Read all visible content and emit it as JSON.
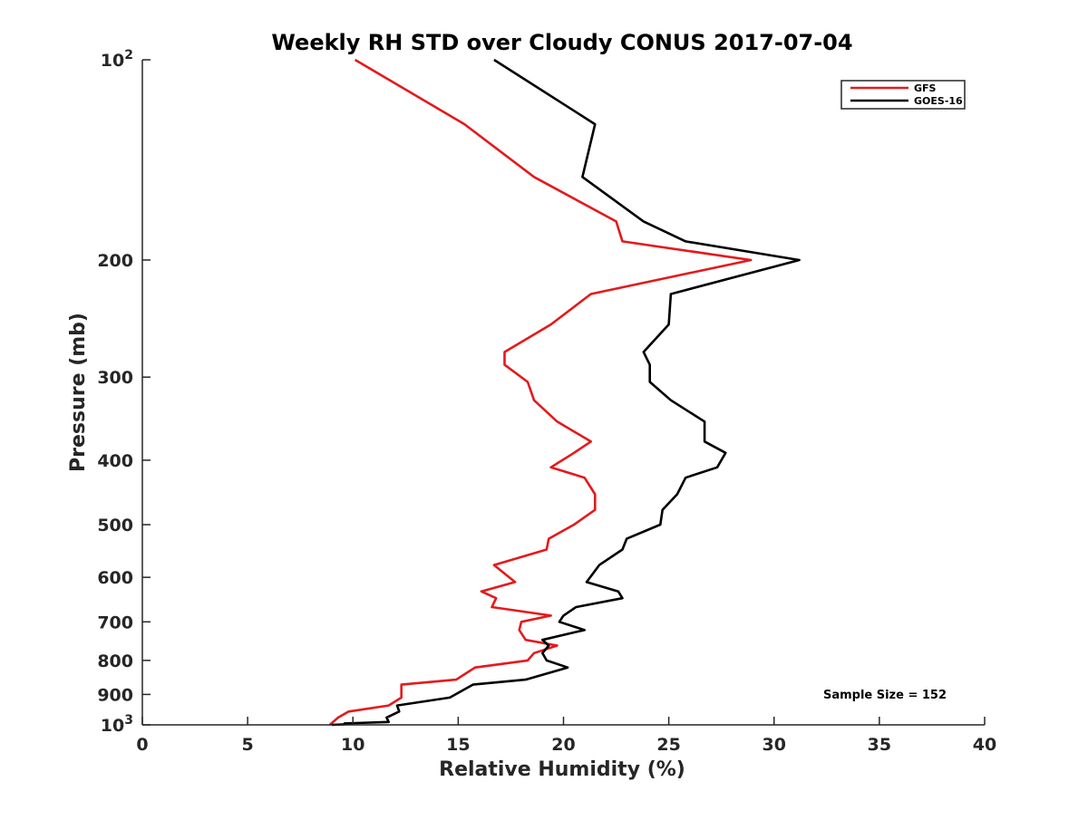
{
  "chart_data": {
    "type": "line",
    "title": "Weekly RH STD over Cloudy CONUS 2017-07-04",
    "xlabel": "Relative Humidity (%)",
    "ylabel": "Pressure (mb)",
    "xlim": [
      0,
      40
    ],
    "ylim": [
      100,
      1000
    ],
    "y_scale": "log",
    "y_reversed": true,
    "grid": false,
    "legend_position": "top-right",
    "x_ticks": [
      0,
      5,
      10,
      15,
      20,
      25,
      30,
      35,
      40
    ],
    "x_tick_labels": [
      "0",
      "5",
      "10",
      "15",
      "20",
      "25",
      "30",
      "35",
      "40"
    ],
    "y_ticks": [
      {
        "value": 100,
        "base": "10",
        "exp": "2"
      },
      {
        "value": 200,
        "label": "200"
      },
      {
        "value": 300,
        "label": "300"
      },
      {
        "value": 400,
        "label": "400"
      },
      {
        "value": 500,
        "label": "500"
      },
      {
        "value": 600,
        "label": "600"
      },
      {
        "value": 700,
        "label": "700"
      },
      {
        "value": 800,
        "label": "800"
      },
      {
        "value": 900,
        "label": "900"
      },
      {
        "value": 1000,
        "base": "10",
        "exp": "3"
      }
    ],
    "series": [
      {
        "name": "GFS",
        "color": "#e31a1c",
        "points": [
          [
            10.1,
            100
          ],
          [
            15.3,
            125
          ],
          [
            18.6,
            150
          ],
          [
            22.5,
            175
          ],
          [
            22.8,
            187.5
          ],
          [
            28.9,
            200
          ],
          [
            21.3,
            225
          ],
          [
            19.4,
            250
          ],
          [
            17.2,
            275
          ],
          [
            17.2,
            287.5
          ],
          [
            18.3,
            305
          ],
          [
            18.6,
            325
          ],
          [
            19.7,
            350
          ],
          [
            21.3,
            375
          ],
          [
            20.5,
            390
          ],
          [
            19.4,
            410
          ],
          [
            21.0,
            425
          ],
          [
            21.5,
            450
          ],
          [
            21.5,
            475
          ],
          [
            20.5,
            500
          ],
          [
            19.3,
            525
          ],
          [
            19.2,
            545
          ],
          [
            16.7,
            575
          ],
          [
            17.7,
            610
          ],
          [
            16.1,
            630
          ],
          [
            16.8,
            645
          ],
          [
            16.6,
            665
          ],
          [
            19.4,
            685
          ],
          [
            18.0,
            700
          ],
          [
            17.9,
            720
          ],
          [
            18.2,
            745
          ],
          [
            19.7,
            760
          ],
          [
            18.6,
            780
          ],
          [
            18.3,
            800
          ],
          [
            15.8,
            820
          ],
          [
            14.9,
            855
          ],
          [
            12.3,
            870
          ],
          [
            12.3,
            910
          ],
          [
            11.7,
            935
          ],
          [
            9.8,
            955
          ],
          [
            9.3,
            975
          ],
          [
            8.9,
            1000
          ]
        ]
      },
      {
        "name": "GOES-16",
        "color": "#000000",
        "points": [
          [
            16.7,
            100
          ],
          [
            21.5,
            125
          ],
          [
            20.9,
            150
          ],
          [
            23.8,
            175
          ],
          [
            25.8,
            187.5
          ],
          [
            31.2,
            200
          ],
          [
            25.1,
            225
          ],
          [
            25.0,
            250
          ],
          [
            23.8,
            275
          ],
          [
            24.1,
            287.5
          ],
          [
            24.1,
            305
          ],
          [
            25.1,
            325
          ],
          [
            26.7,
            350
          ],
          [
            26.7,
            375
          ],
          [
            27.7,
            390
          ],
          [
            27.3,
            410
          ],
          [
            25.8,
            425
          ],
          [
            25.4,
            450
          ],
          [
            24.7,
            475
          ],
          [
            24.6,
            500
          ],
          [
            23.0,
            525
          ],
          [
            22.8,
            545
          ],
          [
            21.7,
            575
          ],
          [
            21.1,
            610
          ],
          [
            22.6,
            630
          ],
          [
            22.8,
            645
          ],
          [
            20.6,
            665
          ],
          [
            20.0,
            685
          ],
          [
            19.8,
            700
          ],
          [
            21.0,
            720
          ],
          [
            19.0,
            745
          ],
          [
            19.3,
            760
          ],
          [
            19.0,
            780
          ],
          [
            19.2,
            800
          ],
          [
            20.2,
            820
          ],
          [
            18.2,
            855
          ],
          [
            15.7,
            870
          ],
          [
            14.6,
            910
          ],
          [
            12.1,
            935
          ],
          [
            12.2,
            955
          ],
          [
            11.6,
            975
          ],
          [
            11.7,
            990
          ],
          [
            9.6,
            995
          ],
          [
            9.6,
            998
          ],
          [
            9.0,
            1000
          ]
        ]
      }
    ],
    "annotation": "Sample Size = 152"
  }
}
